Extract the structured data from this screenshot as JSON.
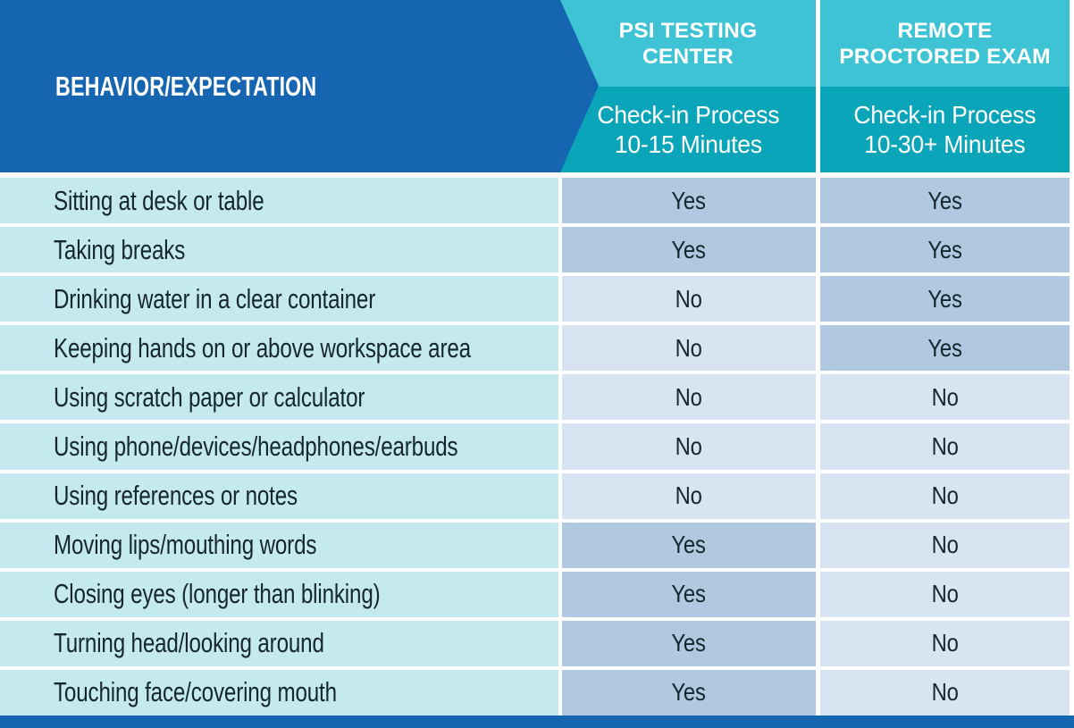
{
  "colors": {
    "blue": "#1565b0",
    "teal-light": "#3dc3d4",
    "teal-dark": "#0aa5b8",
    "row-bg": "#c4e9ee",
    "yes-bg": "#b0c8e0",
    "no-bg": "#d8e4f1",
    "text-dark": "#15262e",
    "text-white": "#ffffff"
  },
  "header": {
    "behavior_label": "BEHAVIOR/EXPECTATION",
    "columns": [
      {
        "title_lines": [
          "PSI TESTING",
          "CENTER"
        ],
        "subtitle_lines": [
          "Check-in Process",
          "10-15 Minutes"
        ]
      },
      {
        "title_lines": [
          "REMOTE",
          "PROCTORED EXAM"
        ],
        "subtitle_lines": [
          "Check-in Process",
          "10-30+ Minutes"
        ]
      }
    ]
  },
  "rows": [
    {
      "behavior": "Sitting at desk or table",
      "psi": "Yes",
      "remote": "Yes"
    },
    {
      "behavior": "Taking breaks",
      "psi": "Yes",
      "remote": "Yes"
    },
    {
      "behavior": "Drinking water in a clear container",
      "psi": "No",
      "remote": "Yes"
    },
    {
      "behavior": "Keeping hands on or above workspace area",
      "psi": "No",
      "remote": "Yes"
    },
    {
      "behavior": "Using scratch paper or calculator",
      "psi": "No",
      "remote": "No"
    },
    {
      "behavior": "Using phone/devices/headphones/earbuds",
      "psi": "No",
      "remote": "No"
    },
    {
      "behavior": "Using references or notes",
      "psi": "No",
      "remote": "No"
    },
    {
      "behavior": "Moving lips/mouthing words",
      "psi": "Yes",
      "remote": "No"
    },
    {
      "behavior": "Closing eyes (longer than blinking)",
      "psi": "Yes",
      "remote": "No"
    },
    {
      "behavior": "Turning head/looking around",
      "psi": "Yes",
      "remote": "No"
    },
    {
      "behavior": "Touching face/covering mouth",
      "psi": "Yes",
      "remote": "No"
    }
  ],
  "chart_data": {
    "type": "table",
    "title": "BEHAVIOR/EXPECTATION",
    "columns": [
      "BEHAVIOR/EXPECTATION",
      "PSI TESTING CENTER — Check-in Process 10-15 Minutes",
      "REMOTE PROCTORED EXAM — Check-in Process 10-30+ Minutes"
    ],
    "rows": [
      [
        "Sitting at desk or table",
        "Yes",
        "Yes"
      ],
      [
        "Taking breaks",
        "Yes",
        "Yes"
      ],
      [
        "Drinking water in a clear container",
        "No",
        "Yes"
      ],
      [
        "Keeping hands on or above workspace area",
        "No",
        "Yes"
      ],
      [
        "Using scratch paper or calculator",
        "No",
        "No"
      ],
      [
        "Using phone/devices/headphones/earbuds",
        "No",
        "No"
      ],
      [
        "Using references or notes",
        "No",
        "No"
      ],
      [
        "Moving lips/mouthing words",
        "Yes",
        "No"
      ],
      [
        "Closing eyes (longer than blinking)",
        "Yes",
        "No"
      ],
      [
        "Turning head/looking around",
        "Yes",
        "No"
      ],
      [
        "Touching face/covering mouth",
        "Yes",
        "No"
      ]
    ],
    "legend": {
      "yes_cell_color": "#b0c8e0",
      "no_cell_color": "#d8e4f1"
    }
  }
}
